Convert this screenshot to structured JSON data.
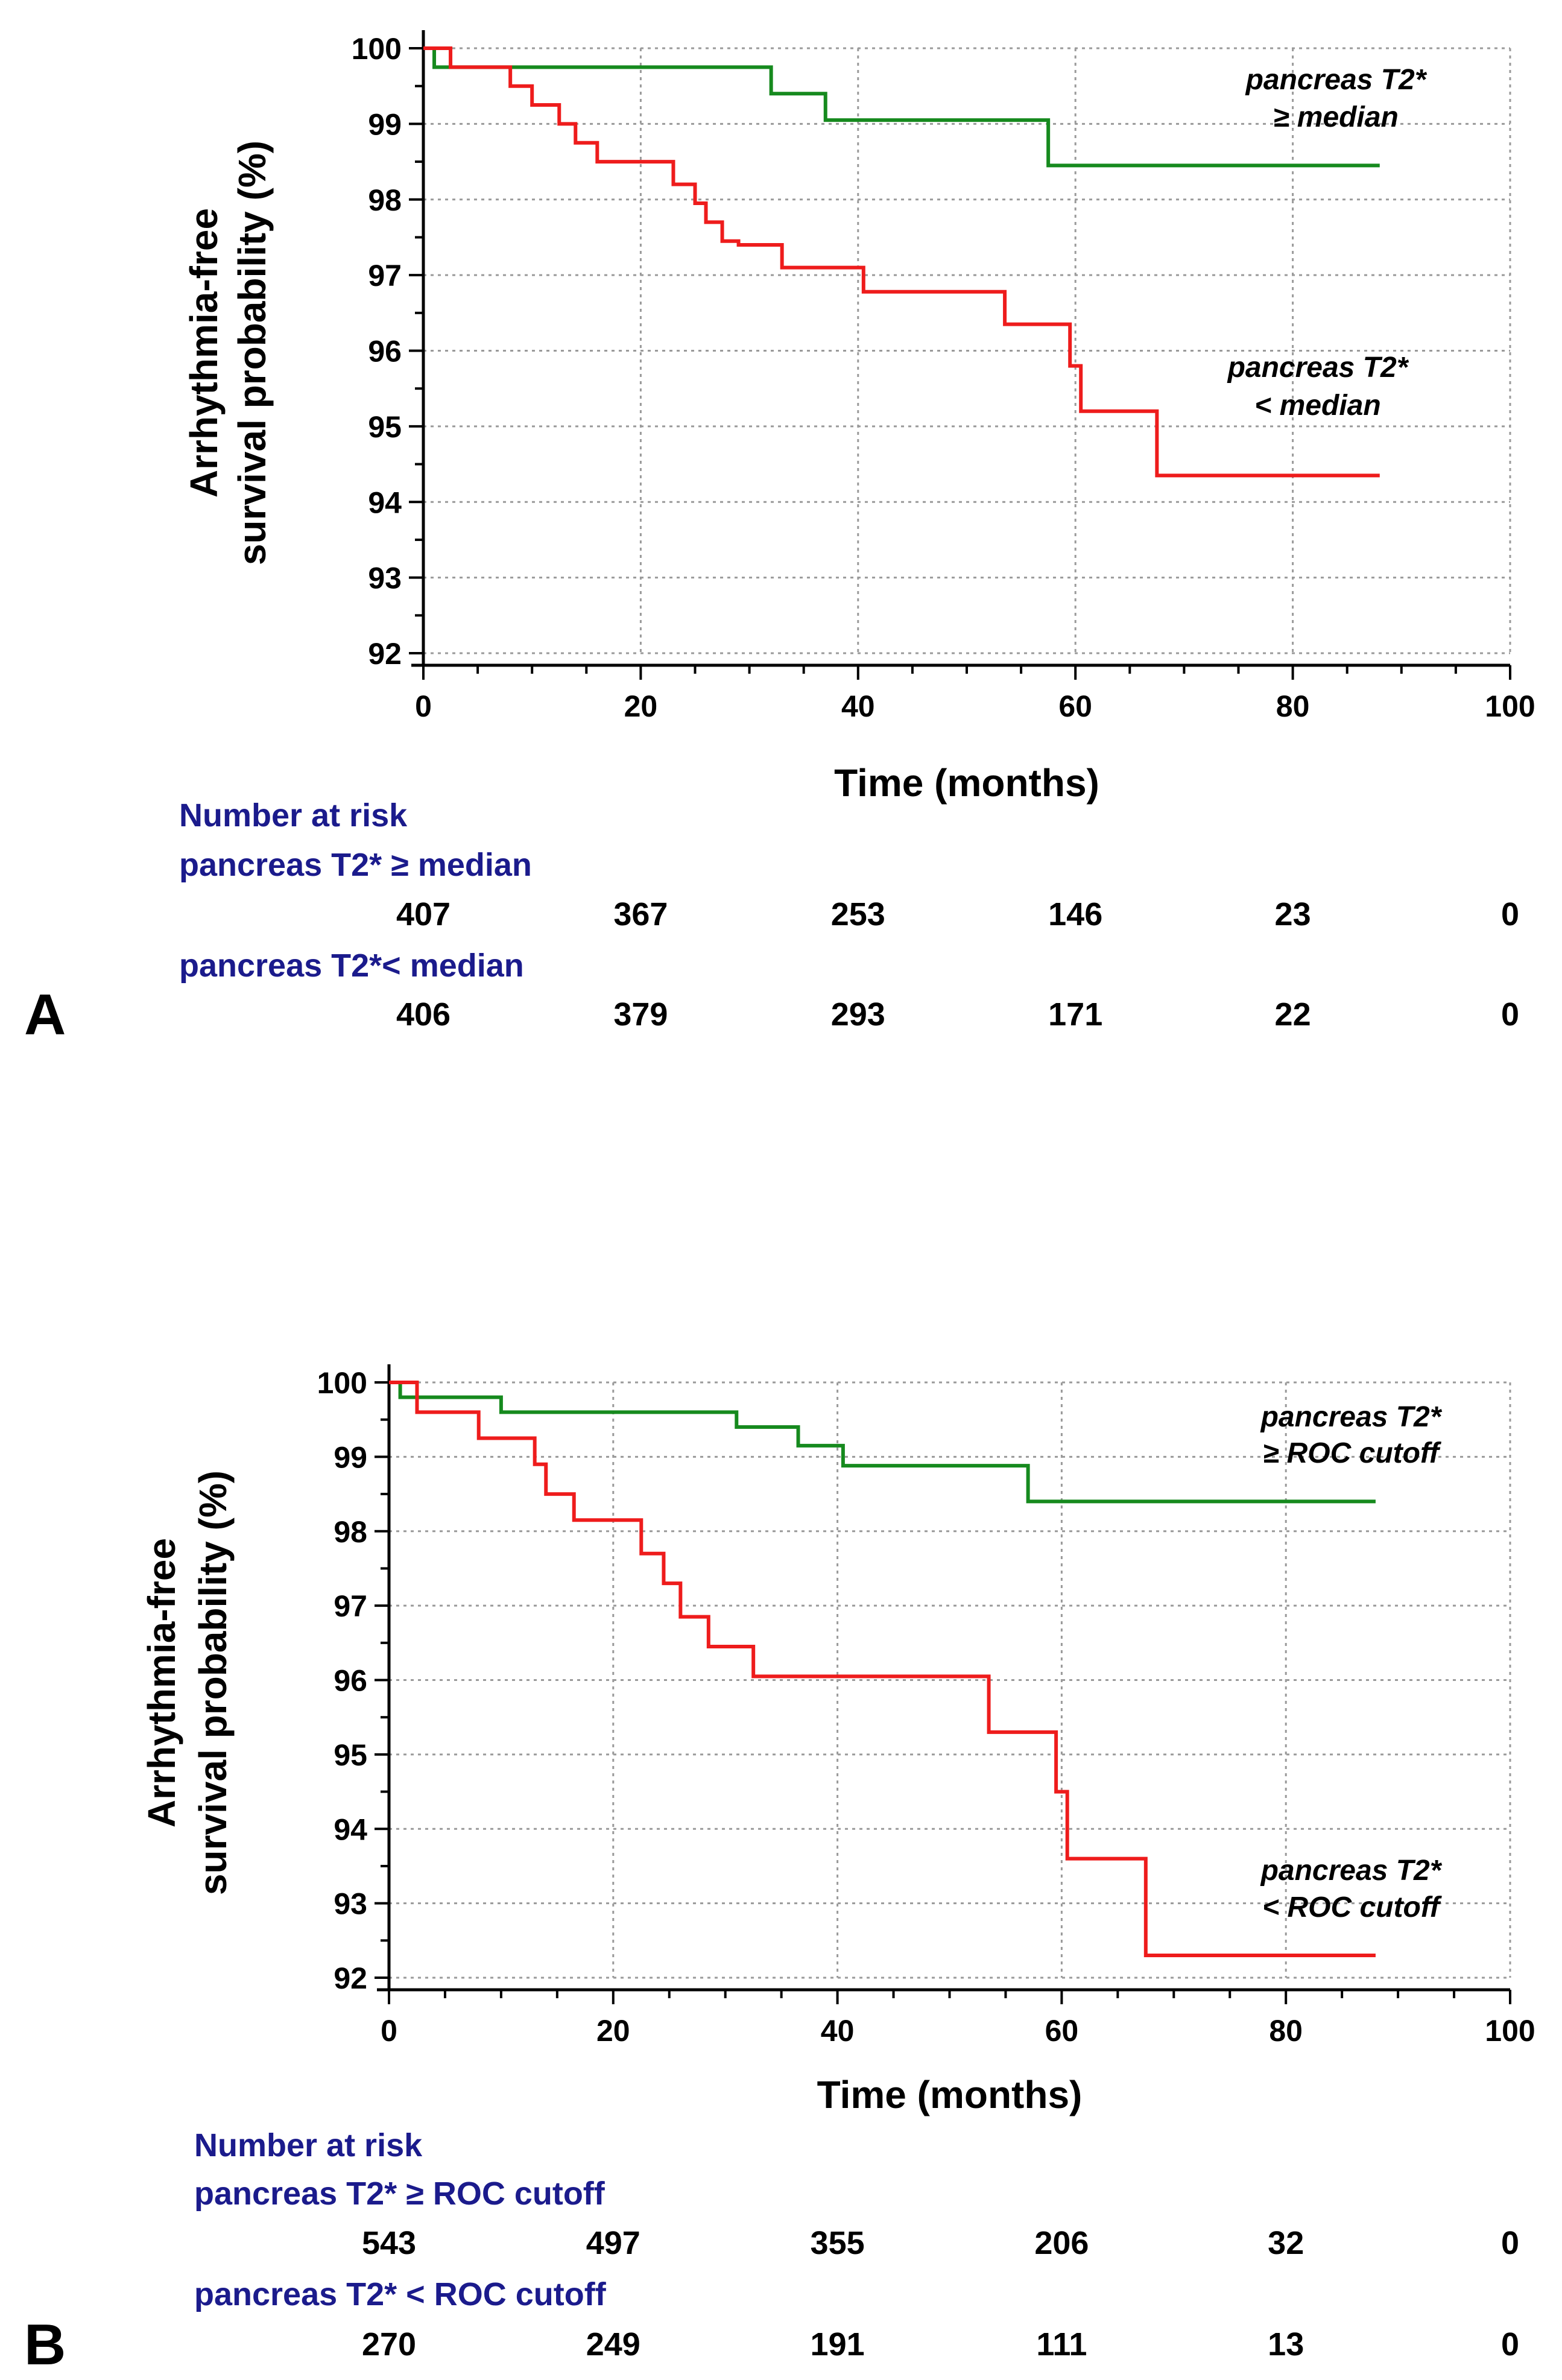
{
  "chart_data": [
    {
      "type": "line",
      "panel_label": "A",
      "xlabel": "Time (months)",
      "ylabel_lines": [
        "Arrhythmia-free",
        "survival probability (%)"
      ],
      "xlim": [
        0,
        100
      ],
      "ylim": [
        92,
        100
      ],
      "xticks": [
        0,
        20,
        40,
        60,
        80,
        100
      ],
      "yticks": [
        92,
        93,
        94,
        95,
        96,
        97,
        98,
        99,
        100
      ],
      "x_minor_step": 5,
      "y_minor_step": 0.5,
      "grid": true,
      "series": [
        {
          "name": "pancreas T2* ≥ median",
          "label_lines": [
            "pancreas T2*",
            "≥ median"
          ],
          "color": "#168a1e",
          "steps": [
            [
              0,
              100
            ],
            [
              1,
              99.75
            ],
            [
              32,
              99.4
            ],
            [
              37,
              99.05
            ],
            [
              57.5,
              98.45
            ],
            [
              88,
              98.45
            ]
          ]
        },
        {
          "name": "pancreas T2* < median",
          "label_lines": [
            "pancreas T2*",
            "< median"
          ],
          "color": "#ee1c1c",
          "steps": [
            [
              0,
              100
            ],
            [
              2.5,
              99.75
            ],
            [
              8,
              99.5
            ],
            [
              10,
              99.25
            ],
            [
              12.5,
              99.0
            ],
            [
              14,
              98.75
            ],
            [
              16,
              98.5
            ],
            [
              23,
              98.2
            ],
            [
              25,
              97.95
            ],
            [
              26,
              97.7
            ],
            [
              27.5,
              97.45
            ],
            [
              29,
              97.4
            ],
            [
              33,
              97.1
            ],
            [
              40.5,
              96.78
            ],
            [
              53.5,
              96.35
            ],
            [
              59.5,
              95.8
            ],
            [
              60.5,
              95.2
            ],
            [
              67.5,
              94.35
            ],
            [
              88,
              94.35
            ]
          ]
        }
      ],
      "risk_table": {
        "heading": "Number at risk",
        "rows": [
          {
            "label": "pancreas T2* ≥ median",
            "values": [
              "407",
              "367",
              "253",
              "146",
              "23",
              "0"
            ]
          },
          {
            "label": "pancreas T2*< median",
            "values": [
              "406",
              "379",
              "293",
              "171",
              "22",
              "0"
            ]
          }
        ]
      }
    },
    {
      "type": "line",
      "panel_label": "B",
      "xlabel": "Time (months)",
      "ylabel_lines": [
        "Arrhythmia-free",
        "survival probability (%)"
      ],
      "xlim": [
        0,
        100
      ],
      "ylim": [
        92,
        100
      ],
      "xticks": [
        0,
        20,
        40,
        60,
        80,
        100
      ],
      "yticks": [
        92,
        93,
        94,
        95,
        96,
        97,
        98,
        99,
        100
      ],
      "x_minor_step": 5,
      "y_minor_step": 0.5,
      "grid": true,
      "series": [
        {
          "name": "pancreas T2* ≥ ROC cutoff",
          "label_lines": [
            "pancreas T2*",
            "≥ ROC cutoff"
          ],
          "color": "#168a1e",
          "steps": [
            [
              0,
              100
            ],
            [
              1,
              99.8
            ],
            [
              10,
              99.6
            ],
            [
              31,
              99.4
            ],
            [
              36.5,
              99.15
            ],
            [
              40.5,
              98.88
            ],
            [
              57,
              98.4
            ],
            [
              88,
              98.4
            ]
          ]
        },
        {
          "name": "pancreas T2* < ROC cutoff",
          "label_lines": [
            "pancreas T2*",
            "< ROC cutoff"
          ],
          "color": "#ee1c1c",
          "steps": [
            [
              0,
              100
            ],
            [
              2.5,
              99.6
            ],
            [
              8,
              99.25
            ],
            [
              13,
              98.9
            ],
            [
              14,
              98.5
            ],
            [
              16.5,
              98.15
            ],
            [
              22.5,
              97.7
            ],
            [
              24.5,
              97.3
            ],
            [
              26,
              96.85
            ],
            [
              28.5,
              96.45
            ],
            [
              32.5,
              96.05
            ],
            [
              53.5,
              95.3
            ],
            [
              59.5,
              94.5
            ],
            [
              60.5,
              93.6
            ],
            [
              67.5,
              92.3
            ],
            [
              88,
              92.3
            ]
          ]
        }
      ],
      "risk_table": {
        "heading": "Number at risk",
        "rows": [
          {
            "label": "pancreas T2* ≥ ROC cutoff",
            "values": [
              "543",
              "497",
              "355",
              "206",
              "32",
              "0"
            ]
          },
          {
            "label": "pancreas T2* < ROC cutoff",
            "values": [
              "270",
              "249",
              "191",
              "111",
              "13",
              "0"
            ]
          }
        ]
      }
    }
  ]
}
